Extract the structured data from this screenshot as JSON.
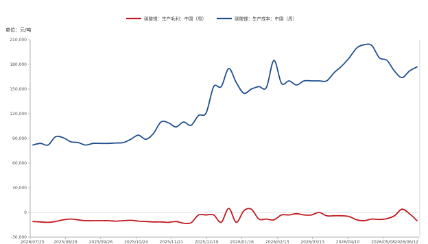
{
  "chart_data": {
    "type": "line",
    "unit_label": "单位：元/吨",
    "legend": [
      {
        "name": "碳酸锂：生产毛利：中国（周）",
        "color": "#c0181e"
      },
      {
        "name": "碳酸锂：生产成本：中国（周）",
        "color": "#1f4e8c"
      }
    ],
    "legend_position": "top-center",
    "grid": false,
    "ylim": [
      -30000,
      210000
    ],
    "y_ticks": [
      {
        "value": 210000,
        "label": "210,000"
      },
      {
        "value": 180000,
        "label": "180,000"
      },
      {
        "value": 150000,
        "label": "150,000"
      },
      {
        "value": 120000,
        "label": "120,000"
      },
      {
        "value": 90000,
        "label": "90,000"
      },
      {
        "value": 60000,
        "label": "60,000"
      },
      {
        "value": 30000,
        "label": "30,000"
      },
      {
        "value": 0,
        "label": "0"
      },
      {
        "value": -30000,
        "label": "-30,000"
      }
    ],
    "x_ticks": [
      "2026/07/25",
      "2025/08/29",
      "2025/09/26",
      "2025/10/24",
      "2025/11/21",
      "2025/12/19",
      "2026/01/16",
      "2026/02/13",
      "2026/03/13",
      "2026/04/10",
      "2026/05/08",
      "2026/06/12"
    ],
    "x": [
      0,
      1,
      2,
      3,
      4,
      5,
      6,
      7,
      8,
      9,
      10,
      11,
      12,
      13,
      14,
      15,
      16,
      17,
      18,
      19,
      20,
      21,
      22,
      23,
      24,
      25,
      26,
      27,
      28,
      29,
      30,
      31,
      32,
      33,
      34,
      35,
      36,
      37,
      38,
      39,
      40,
      41,
      42,
      43,
      44,
      45,
      46,
      47,
      48,
      49,
      50,
      51
    ],
    "series": [
      {
        "name": "碳酸锂：生产毛利：中国（周）",
        "color": "#c0181e",
        "values": [
          -11000,
          -11500,
          -12000,
          -11000,
          -9000,
          -8000,
          -9000,
          -10000,
          -10000,
          -10000,
          -10000,
          -10500,
          -10000,
          -9500,
          -10500,
          -11000,
          -11500,
          -11500,
          -12000,
          -11000,
          -13000,
          -12500,
          -3000,
          -3000,
          -3000,
          -12000,
          5000,
          -12000,
          2000,
          4000,
          -8000,
          -8000,
          -9000,
          -3000,
          -3000,
          -1500,
          -3000,
          -3000,
          0,
          -4000,
          -4000,
          -4000,
          -5000,
          -9000,
          -10000,
          -8000,
          -8500,
          -7500,
          -4000,
          4000,
          -1500,
          -10000
        ]
      },
      {
        "name": "碳酸锂：生产成本：中国（周）",
        "color": "#1f4e8c",
        "values": [
          82000,
          84000,
          82000,
          92000,
          91000,
          86000,
          85000,
          82000,
          84000,
          84000,
          84000,
          84500,
          85000,
          89000,
          94000,
          89000,
          96000,
          110000,
          109000,
          104000,
          110000,
          106000,
          118000,
          121000,
          153000,
          153000,
          175000,
          158000,
          145000,
          150000,
          153000,
          152000,
          185000,
          157000,
          160000,
          155000,
          160000,
          160000,
          160000,
          160000,
          170000,
          178000,
          188000,
          200000,
          204000,
          203000,
          188000,
          185000,
          172000,
          164000,
          172000,
          177000
        ]
      }
    ]
  }
}
